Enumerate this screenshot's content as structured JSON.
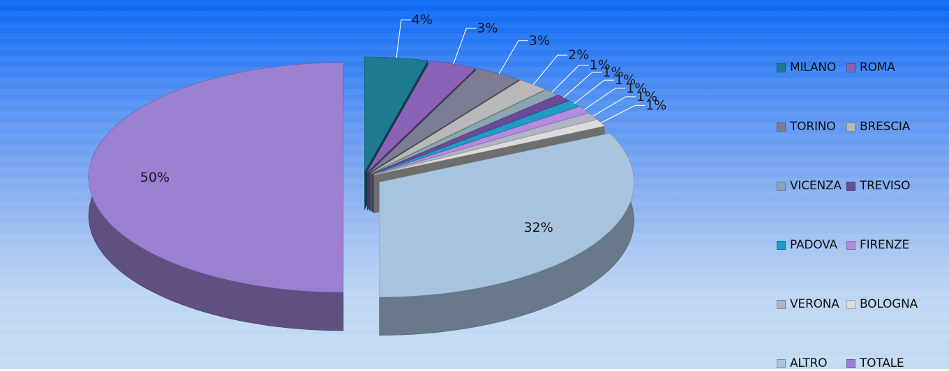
{
  "chart_data": {
    "type": "pie",
    "title": "",
    "exploded": true,
    "three_d": true,
    "legend_position": "right",
    "categories": [
      "MILANO",
      "ROMA",
      "TORINO",
      "BRESCIA",
      "VICENZA",
      "TREVISO",
      "PADOVA",
      "FIRENZE",
      "VERONA",
      "BOLOGNA",
      "ALTRO",
      "TOTALE"
    ],
    "values": [
      4,
      3,
      3,
      2,
      1,
      1,
      1,
      1,
      1,
      1,
      32,
      50
    ],
    "data_labels": [
      "4%",
      "3%",
      "3%",
      "2%",
      "1%",
      "1%",
      "1%",
      "1%",
      "1%",
      "1%",
      "32%",
      "50%"
    ],
    "colors": [
      "#1d7a91",
      "#8a63b6",
      "#7b7d95",
      "#b8b8b8",
      "#8aa6b5",
      "#6c4a97",
      "#1f9bc6",
      "#b48be0",
      "#b3b3c6",
      "#dcdcdc",
      "#a8c3dd",
      "#9b7fd0"
    ]
  }
}
